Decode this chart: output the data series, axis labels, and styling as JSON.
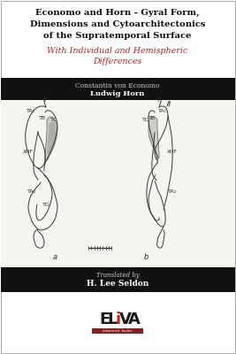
{
  "title_line1": "Economo and Horn - Gyral Form,",
  "title_line2": "Dimensions and Cytoarchitectonics",
  "title_line3": "of the Supratemporal Surface",
  "subtitle_line1": "With Individual and Hemispheric",
  "subtitle_line2": "Differences",
  "author_line1": "Constantin von Economo",
  "author_line2": "Ludwig Horn",
  "translator_label": "Translated by",
  "translator_name": "H. Lee Seldon",
  "bg_color": "#ffffff",
  "title_color": "#111111",
  "subtitle_color": "#b52222",
  "black_band_color": "#111111",
  "band_text_color": "#cccccc",
  "eliva_dark": "#1a1a1a",
  "eliva_red": "#cc2222",
  "eliva_bar": "#8b2020",
  "border_color": "#aaaaaa",
  "illus_line_color": "#2a2a2a",
  "illus_shade_color": "#bbbbbb",
  "illus_shade2_color": "#999999",
  "illus_bg": "#f5f5f0"
}
